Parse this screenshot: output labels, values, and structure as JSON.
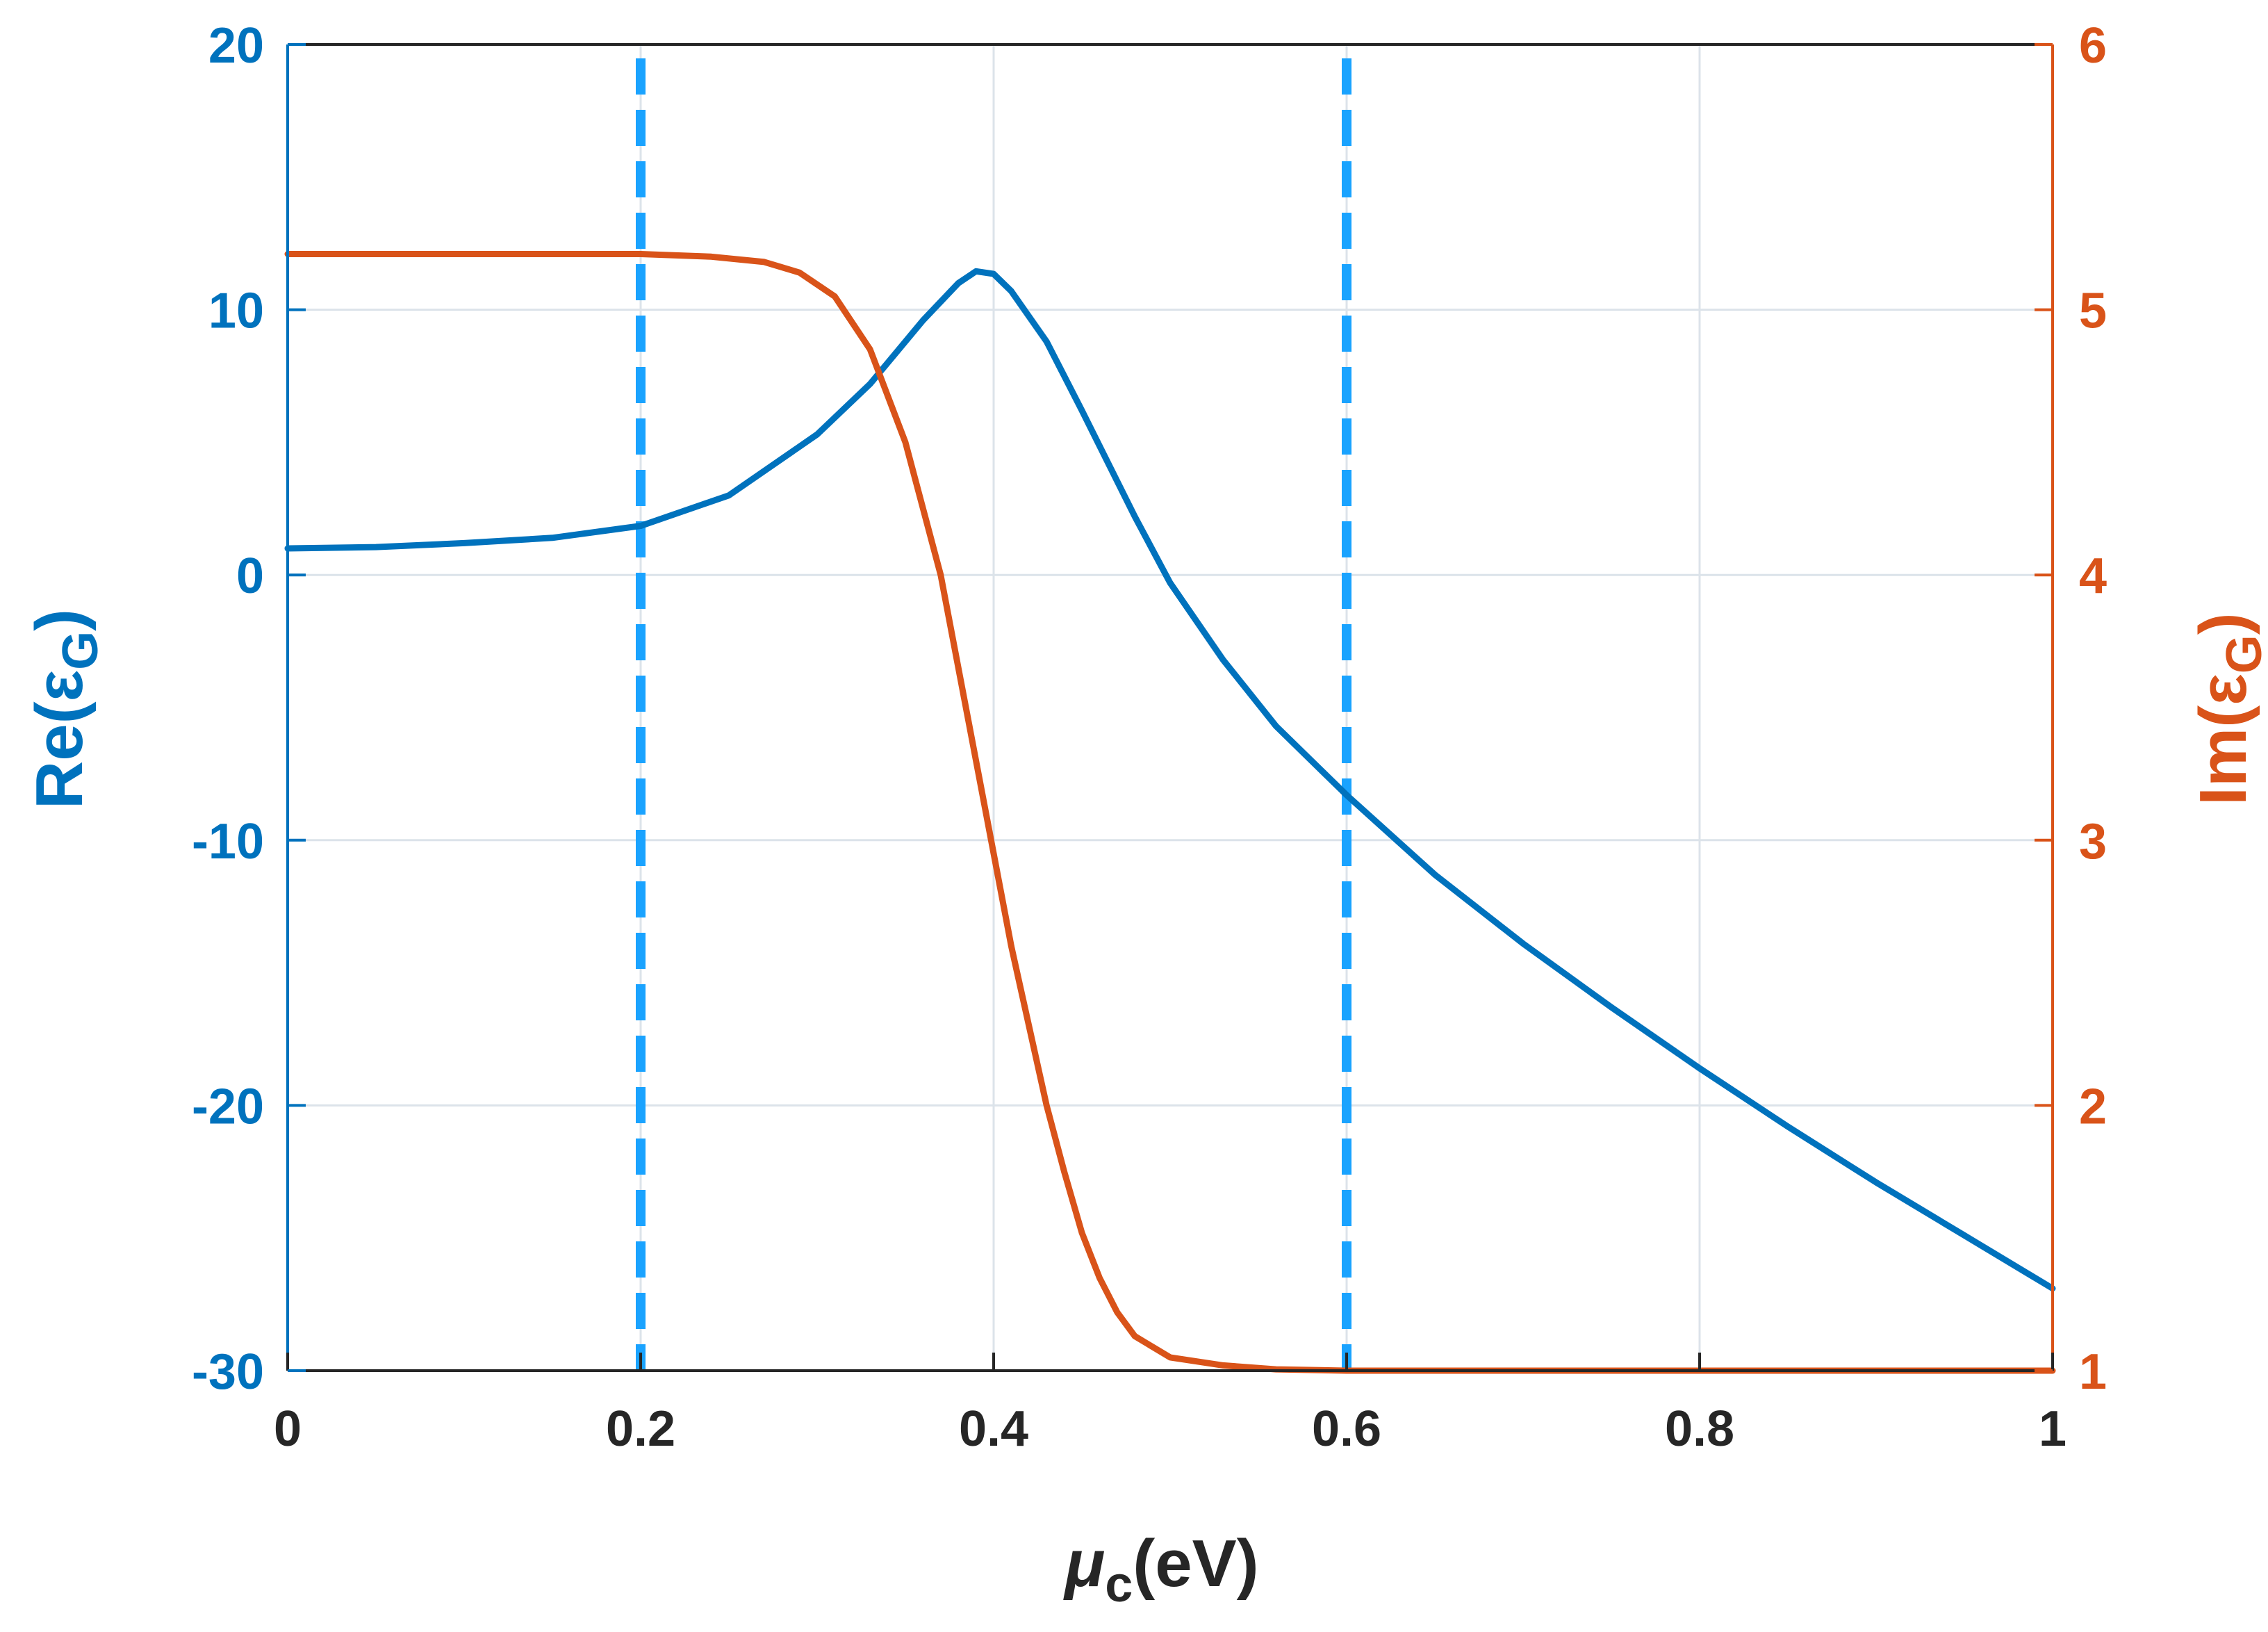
{
  "chart_data": {
    "type": "line",
    "xlabel": {
      "main": "μ",
      "sub": "c",
      "rest": "(eV)"
    },
    "ylabel_left": {
      "main": "Re(ε",
      "sub": "G",
      "rest": ")"
    },
    "ylabel_right": {
      "main": "Im(ε",
      "sub": "G",
      "rest": ")"
    },
    "xlim": [
      0,
      1
    ],
    "ylim_left": [
      -30,
      20
    ],
    "ylim_right": [
      1,
      6
    ],
    "x_ticks": [
      "0",
      "0.2",
      "0.4",
      "0.6",
      "0.8",
      "1"
    ],
    "y_left_ticks": [
      "-30",
      "-20",
      "-10",
      "0",
      "10",
      "20"
    ],
    "y_right_ticks": [
      "1",
      "2",
      "3",
      "4",
      "5",
      "6"
    ],
    "grid": true,
    "colors": {
      "left_axis": "#0072BD",
      "right_axis": "#D95319",
      "markers": "#1AA3FF",
      "grid": "#DCE3EA",
      "x_axis": "#262626"
    },
    "series": [
      {
        "axis": "left",
        "color": "#0072BD",
        "points": [
          [
            0,
            1.0
          ],
          [
            0.05,
            1.05
          ],
          [
            0.1,
            1.2
          ],
          [
            0.15,
            1.4
          ],
          [
            0.2,
            1.85
          ],
          [
            0.25,
            3.0
          ],
          [
            0.3,
            5.3
          ],
          [
            0.33,
            7.2
          ],
          [
            0.36,
            9.6
          ],
          [
            0.38,
            11.0
          ],
          [
            0.39,
            11.45
          ],
          [
            0.4,
            11.35
          ],
          [
            0.41,
            10.7
          ],
          [
            0.43,
            8.8
          ],
          [
            0.45,
            6.2
          ],
          [
            0.48,
            2.2
          ],
          [
            0.5,
            -0.3
          ],
          [
            0.53,
            -3.2
          ],
          [
            0.56,
            -5.7
          ],
          [
            0.6,
            -8.3
          ],
          [
            0.65,
            -11.3
          ],
          [
            0.7,
            -13.9
          ],
          [
            0.75,
            -16.3
          ],
          [
            0.8,
            -18.6
          ],
          [
            0.85,
            -20.8
          ],
          [
            0.9,
            -22.9
          ],
          [
            0.95,
            -24.9
          ],
          [
            1.0,
            -26.9
          ]
        ]
      },
      {
        "axis": "right",
        "color": "#D95319",
        "points": [
          [
            0,
            5.21
          ],
          [
            0.1,
            5.21
          ],
          [
            0.2,
            5.21
          ],
          [
            0.24,
            5.2
          ],
          [
            0.27,
            5.18
          ],
          [
            0.29,
            5.14
          ],
          [
            0.31,
            5.05
          ],
          [
            0.33,
            4.85
          ],
          [
            0.35,
            4.5
          ],
          [
            0.37,
            4.0
          ],
          [
            0.39,
            3.3
          ],
          [
            0.4,
            2.95
          ],
          [
            0.41,
            2.6
          ],
          [
            0.42,
            2.3
          ],
          [
            0.43,
            2.0
          ],
          [
            0.44,
            1.75
          ],
          [
            0.45,
            1.52
          ],
          [
            0.46,
            1.35
          ],
          [
            0.47,
            1.22
          ],
          [
            0.48,
            1.13
          ],
          [
            0.5,
            1.05
          ],
          [
            0.53,
            1.02
          ],
          [
            0.56,
            1.005
          ],
          [
            0.6,
            1.0
          ],
          [
            0.7,
            1.0
          ],
          [
            0.8,
            1.0
          ],
          [
            0.9,
            1.0
          ],
          [
            1.0,
            1.0
          ]
        ]
      }
    ],
    "markers": [
      {
        "type": "vertical_dashed_line",
        "x": 0.2
      },
      {
        "type": "vertical_dashed_line",
        "x": 0.6
      }
    ]
  }
}
